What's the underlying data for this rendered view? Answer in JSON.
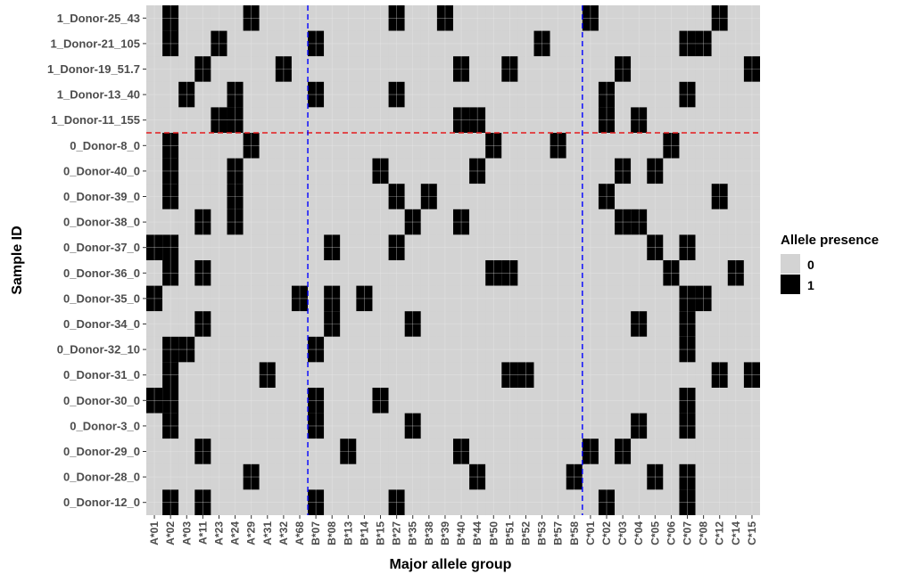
{
  "chart_data": {
    "type": "heatmap",
    "xlabel": "Major allele group",
    "ylabel": "Sample ID",
    "x_categories": [
      "A*01",
      "A*02",
      "A*03",
      "A*11",
      "A*23",
      "A*24",
      "A*29",
      "A*31",
      "A*32",
      "A*68",
      "B*07",
      "B*08",
      "B*13",
      "B*14",
      "B*15",
      "B*27",
      "B*35",
      "B*38",
      "B*39",
      "B*40",
      "B*44",
      "B*50",
      "B*51",
      "B*52",
      "B*53",
      "B*57",
      "B*58",
      "C*01",
      "C*02",
      "C*03",
      "C*04",
      "C*05",
      "C*06",
      "C*07",
      "C*08",
      "C*12",
      "C*14",
      "C*15"
    ],
    "y_categories": [
      "1_Donor-25_43",
      "1_Donor-21_105",
      "1_Donor-19_51.7",
      "1_Donor-13_40",
      "1_Donor-11_155",
      "0_Donor-8_0",
      "0_Donor-40_0",
      "0_Donor-39_0",
      "0_Donor-38_0",
      "0_Donor-37_0",
      "0_Donor-36_0",
      "0_Donor-35_0",
      "0_Donor-34_0",
      "0_Donor-32_10",
      "0_Donor-31_0",
      "0_Donor-30_0",
      "0_Donor-3_0",
      "0_Donor-29_0",
      "0_Donor-28_0",
      "0_Donor-12_0"
    ],
    "present": {
      "1_Donor-25_43": [
        "A*02",
        "A*29",
        "B*27",
        "B*39",
        "C*01",
        "C*12"
      ],
      "1_Donor-21_105": [
        "A*02",
        "A*23",
        "B*07",
        "B*53",
        "C*07",
        "C*08"
      ],
      "1_Donor-19_51.7": [
        "A*11",
        "A*32",
        "B*40",
        "B*51",
        "C*03",
        "C*15"
      ],
      "1_Donor-13_40": [
        "A*03",
        "A*24",
        "B*07",
        "B*27",
        "C*02",
        "C*07"
      ],
      "1_Donor-11_155": [
        "A*23",
        "A*24",
        "B*40",
        "B*44",
        "C*02",
        "C*04"
      ],
      "0_Donor-8_0": [
        "A*02",
        "A*29",
        "B*50",
        "B*57",
        "C*06"
      ],
      "0_Donor-40_0": [
        "A*02",
        "A*24",
        "B*15",
        "B*44",
        "C*03",
        "C*05"
      ],
      "0_Donor-39_0": [
        "A*02",
        "A*24",
        "B*27",
        "B*38",
        "C*02",
        "C*12"
      ],
      "0_Donor-38_0": [
        "A*11",
        "A*24",
        "B*35",
        "B*40",
        "C*03",
        "C*04"
      ],
      "0_Donor-37_0": [
        "A*01",
        "A*02",
        "B*08",
        "B*27",
        "C*05",
        "C*07"
      ],
      "0_Donor-36_0": [
        "A*02",
        "A*11",
        "B*50",
        "B*51",
        "C*06",
        "C*14"
      ],
      "0_Donor-35_0": [
        "A*01",
        "A*68",
        "B*08",
        "B*14",
        "C*07",
        "C*08"
      ],
      "0_Donor-34_0": [
        "A*11",
        "A*26",
        "B*08",
        "B*35",
        "C*04",
        "C*07"
      ],
      "0_Donor-32_10": [
        "A*02",
        "A*03",
        "B*07",
        "C*07"
      ],
      "0_Donor-31_0": [
        "A*02",
        "A*31",
        "B*51",
        "B*52",
        "C*12",
        "C*15"
      ],
      "0_Donor-30_0": [
        "A*01",
        "A*02",
        "B*07",
        "B*15",
        "C*07"
      ],
      "0_Donor-3_0": [
        "A*02",
        "B*07",
        "B*35",
        "C*04",
        "C*07"
      ],
      "0_Donor-29_0": [
        "A*11",
        "A*26",
        "B*13",
        "B*40",
        "C*01",
        "C*03"
      ],
      "0_Donor-28_0": [
        "A*29",
        "B*44",
        "B*58",
        "C*05",
        "C*07"
      ],
      "0_Donor-12_0": [
        "A*02",
        "A*11",
        "B*07",
        "B*27",
        "C*02",
        "C*07"
      ]
    },
    "legend": {
      "title": "Allele presence",
      "placement": "right",
      "entries": [
        {
          "label": "0",
          "color": "#d3d3d3"
        },
        {
          "label": "1",
          "color": "#000000"
        }
      ]
    },
    "reference_lines": {
      "horizontal": {
        "between": [
          "1_Donor-11_155",
          "0_Donor-8_0"
        ],
        "color": "#e41a1c",
        "style": "dashed"
      },
      "vertical": [
        {
          "between": [
            "A*68",
            "B*07"
          ],
          "color": "#0000ff",
          "style": "dashed"
        },
        {
          "between": [
            "B*58",
            "C*01"
          ],
          "color": "#0000ff",
          "style": "dashed"
        }
      ]
    },
    "grid": true,
    "colors": {
      "absent": "#d3d3d3",
      "present": "#000000",
      "gridline": "#ebebeb"
    }
  }
}
